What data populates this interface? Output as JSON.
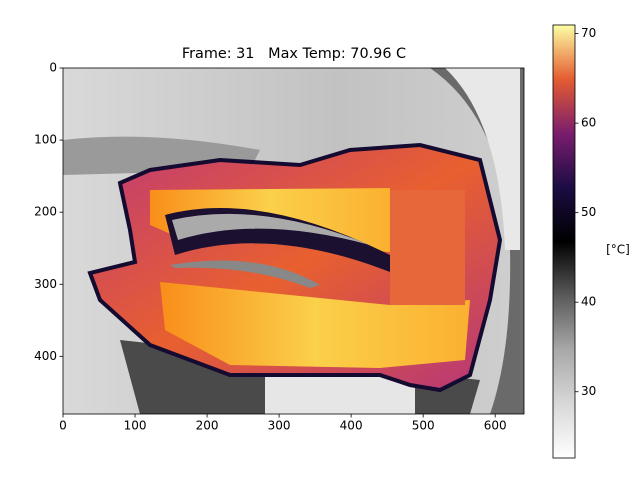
{
  "chart_data": {
    "type": "image",
    "title": "Frame: 31   Max Temp: 70.96 C",
    "xlim": [
      0,
      640
    ],
    "xticks": [
      0,
      100,
      200,
      300,
      400,
      500,
      600
    ],
    "ylim": [
      480,
      0
    ],
    "yticks": [
      0,
      100,
      200,
      300,
      400
    ],
    "colorbar": {
      "label": "[°C]",
      "lim": [
        22.6,
        70.96
      ],
      "ticks": [
        30,
        40,
        50,
        60,
        70
      ],
      "colormap": [
        "#ffffff",
        "#d8d8d8",
        "#a8a8a8",
        "#5a5a5a",
        "#000000",
        "#1c0c43",
        "#7a1d6d",
        "#e55c30",
        "#fcffa4"
      ]
    }
  }
}
